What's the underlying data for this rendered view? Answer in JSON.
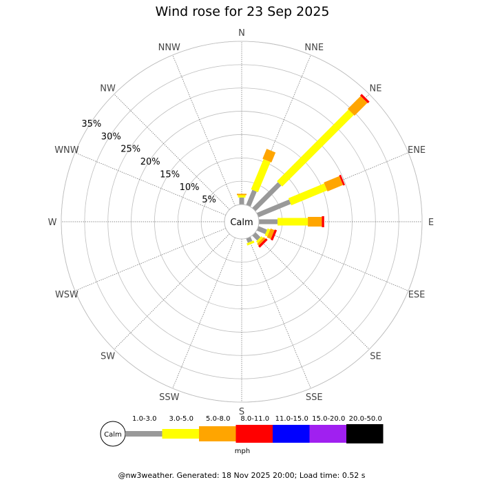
{
  "chart_data": {
    "type": "wind-rose",
    "title": "Wind rose for 23 Sep 2025",
    "directions": [
      "N",
      "NNE",
      "NE",
      "ENE",
      "E",
      "ESE",
      "SE",
      "SSE",
      "S",
      "SSW",
      "SW",
      "WSW",
      "W",
      "WNW",
      "NW",
      "NNW"
    ],
    "radial_ticks": [
      "5%",
      "10%",
      "15%",
      "20%",
      "25%",
      "30%",
      "35%"
    ],
    "radial_max_percent": 35,
    "grid": true,
    "calm_label": "Calm",
    "speed_bins": [
      {
        "label": "1.0-3.0",
        "color": "#999999"
      },
      {
        "label": "3.0-5.0",
        "color": "#ffff00"
      },
      {
        "label": "5.0-8.0",
        "color": "#ffa500"
      },
      {
        "label": "8.0-11.0",
        "color": "#ff0000"
      },
      {
        "label": "11.0-15.0",
        "color": "#0000ff"
      },
      {
        "label": "15.0-20.0",
        "color": "#a020f0"
      },
      {
        "label": "20.0-50.0",
        "color": "#000000"
      }
    ],
    "series": [
      {
        "direction": "N",
        "cumulative_percent": [
          1.5,
          2.0,
          2.3,
          2.3,
          2.3,
          2.3,
          2.3
        ]
      },
      {
        "direction": "NNE",
        "cumulative_percent": [
          3.5,
          10.5,
          12.8,
          12.8,
          12.8,
          12.8,
          12.8
        ]
      },
      {
        "direction": "NE",
        "cumulative_percent": [
          7.8,
          29.5,
          33.4,
          33.9,
          33.9,
          33.9,
          33.9
        ]
      },
      {
        "direction": "ENE",
        "cumulative_percent": [
          7.5,
          15.8,
          19.4,
          19.8,
          19.8,
          19.8,
          19.8
        ]
      },
      {
        "direction": "E",
        "cumulative_percent": [
          4.0,
          10.5,
          13.5,
          14.0,
          14.0,
          14.0,
          14.0
        ]
      },
      {
        "direction": "ESE",
        "cumulative_percent": [
          2.0,
          2.6,
          3.5,
          4.0,
          4.0,
          4.0,
          4.0
        ]
      },
      {
        "direction": "SE",
        "cumulative_percent": [
          1.5,
          2.0,
          2.5,
          3.0,
          3.0,
          3.0,
          3.0
        ]
      },
      {
        "direction": "SSE",
        "cumulative_percent": [
          1.0,
          1.5,
          1.5,
          1.5,
          1.5,
          1.5,
          1.5
        ]
      }
    ],
    "legend_unit": "mph"
  },
  "footer": "@nw3weather. Generated: 18 Nov 2025 20:00; Load time: 0.52 s"
}
